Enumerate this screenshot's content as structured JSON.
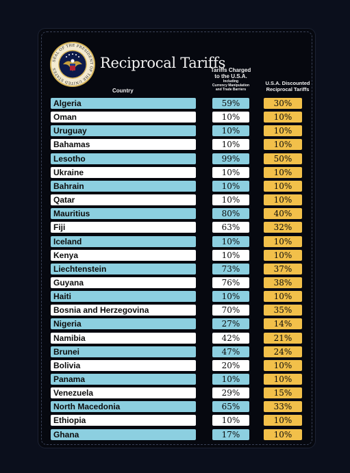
{
  "title": "Reciprocal Tariffs",
  "seal_text": "SEAL OF THE PRESIDENT OF THE UNITED STATES",
  "headers": {
    "country": "Country",
    "charged_line1": "Tariffs Charged",
    "charged_line2": "to the U.S.A.",
    "charged_line3": "Including",
    "charged_line4": "Currency Manipulation",
    "charged_line5": "and Trade Barriers",
    "discount_line1": "U.S.A. Discounted",
    "discount_line2": "Reciprocal Tariffs"
  },
  "colors": {
    "blue_row": "#8ccfe0",
    "white_row": "#ffffff",
    "discount": "#f2c04a",
    "background": "#06080f"
  },
  "rows": [
    {
      "country": "Algeria",
      "charged": "59%",
      "discounted": "30%"
    },
    {
      "country": "Oman",
      "charged": "10%",
      "discounted": "10%"
    },
    {
      "country": "Uruguay",
      "charged": "10%",
      "discounted": "10%"
    },
    {
      "country": "Bahamas",
      "charged": "10%",
      "discounted": "10%"
    },
    {
      "country": "Lesotho",
      "charged": "99%",
      "discounted": "50%"
    },
    {
      "country": "Ukraine",
      "charged": "10%",
      "discounted": "10%"
    },
    {
      "country": "Bahrain",
      "charged": "10%",
      "discounted": "10%"
    },
    {
      "country": "Qatar",
      "charged": "10%",
      "discounted": "10%"
    },
    {
      "country": "Mauritius",
      "charged": "80%",
      "discounted": "40%"
    },
    {
      "country": "Fiji",
      "charged": "63%",
      "discounted": "32%"
    },
    {
      "country": "Iceland",
      "charged": "10%",
      "discounted": "10%"
    },
    {
      "country": "Kenya",
      "charged": "10%",
      "discounted": "10%"
    },
    {
      "country": "Liechtenstein",
      "charged": "73%",
      "discounted": "37%"
    },
    {
      "country": "Guyana",
      "charged": "76%",
      "discounted": "38%"
    },
    {
      "country": "Haiti",
      "charged": "10%",
      "discounted": "10%"
    },
    {
      "country": "Bosnia and Herzegovina",
      "charged": "70%",
      "discounted": "35%"
    },
    {
      "country": "Nigeria",
      "charged": "27%",
      "discounted": "14%"
    },
    {
      "country": "Namibia",
      "charged": "42%",
      "discounted": "21%"
    },
    {
      "country": "Brunei",
      "charged": "47%",
      "discounted": "24%"
    },
    {
      "country": "Bolivia",
      "charged": "20%",
      "discounted": "10%"
    },
    {
      "country": "Panama",
      "charged": "10%",
      "discounted": "10%"
    },
    {
      "country": "Venezuela",
      "charged": "29%",
      "discounted": "15%"
    },
    {
      "country": "North Macedonia",
      "charged": "65%",
      "discounted": "33%"
    },
    {
      "country": "Ethiopia",
      "charged": "10%",
      "discounted": "10%"
    },
    {
      "country": "Ghana",
      "charged": "17%",
      "discounted": "10%"
    }
  ]
}
